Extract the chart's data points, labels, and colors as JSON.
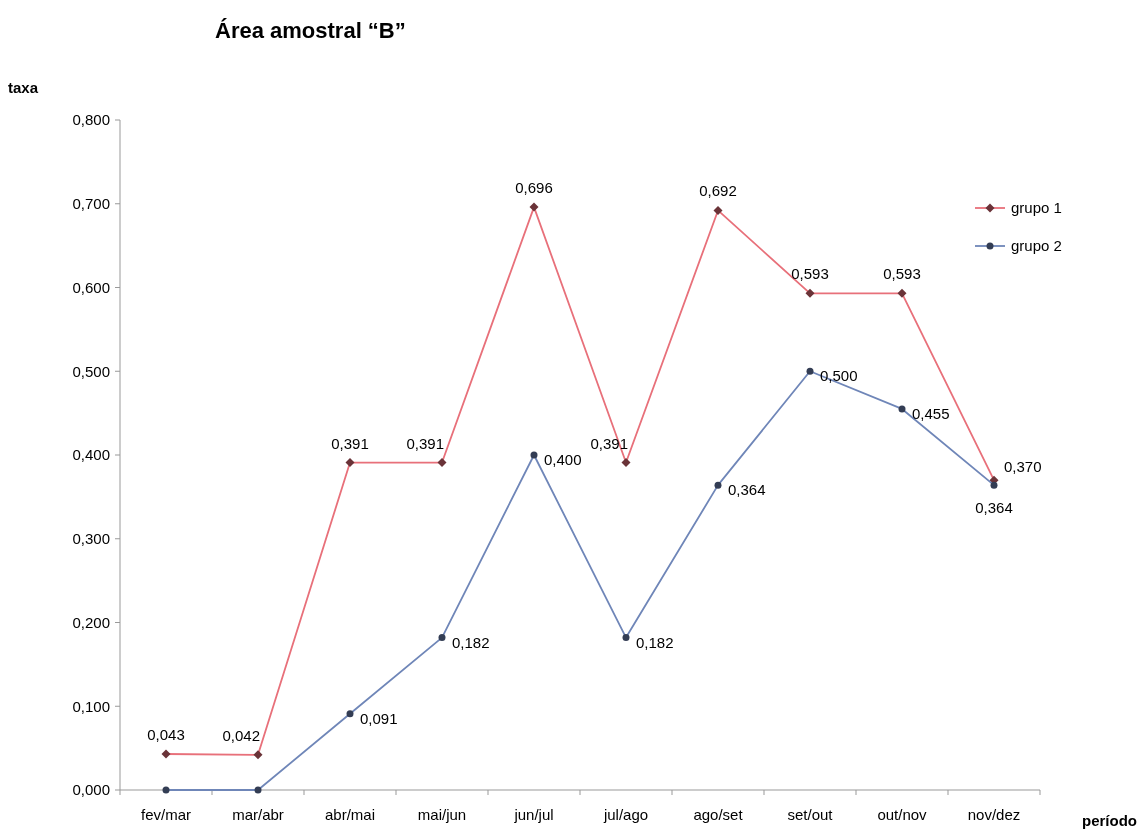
{
  "chart_data": {
    "type": "line",
    "title": "Área amostral “B”",
    "xlabel": "período",
    "ylabel": "taxa",
    "categories": [
      "fev/mar",
      "mar/abr",
      "abr/mai",
      "mai/jun",
      "jun/jul",
      "jul/ago",
      "ago/set",
      "set/out",
      "out/nov",
      "nov/dez"
    ],
    "ylim": [
      0,
      0.8
    ],
    "yticks": [
      {
        "value": 0,
        "label": "0,000"
      },
      {
        "value": 0.1,
        "label": "0,100"
      },
      {
        "value": 0.2,
        "label": "0,200"
      },
      {
        "value": 0.3,
        "label": "0,300"
      },
      {
        "value": 0.4,
        "label": "0,400"
      },
      {
        "value": 0.5,
        "label": "0,500"
      },
      {
        "value": 0.6,
        "label": "0,600"
      },
      {
        "value": 0.7,
        "label": "0,700"
      },
      {
        "value": 0.8,
        "label": "0,800"
      }
    ],
    "grid": false,
    "legend": "top right",
    "line_style": "solid",
    "series": [
      {
        "name": "grupo 1",
        "color": "#e8707a",
        "marker": "diamond",
        "values": [
          0.043,
          0.042,
          0.391,
          0.391,
          0.696,
          0.391,
          0.692,
          0.593,
          0.593,
          0.37
        ],
        "value_labels": [
          "0,043",
          "0,042",
          "0,391",
          "0,391",
          "0,696",
          "0,391",
          "0,692",
          "0,593",
          "0,593",
          "0,370"
        ]
      },
      {
        "name": "grupo 2",
        "color": "#6f86b8",
        "marker": "circle",
        "values": [
          0,
          0,
          0.091,
          0.182,
          0.4,
          0.182,
          0.364,
          0.5,
          0.455,
          0.364
        ],
        "value_labels": [
          null,
          null,
          "0,091",
          "0,182",
          "0,400",
          "0,182",
          "0,364",
          "0,500",
          "0,455",
          "0,364"
        ]
      }
    ]
  }
}
